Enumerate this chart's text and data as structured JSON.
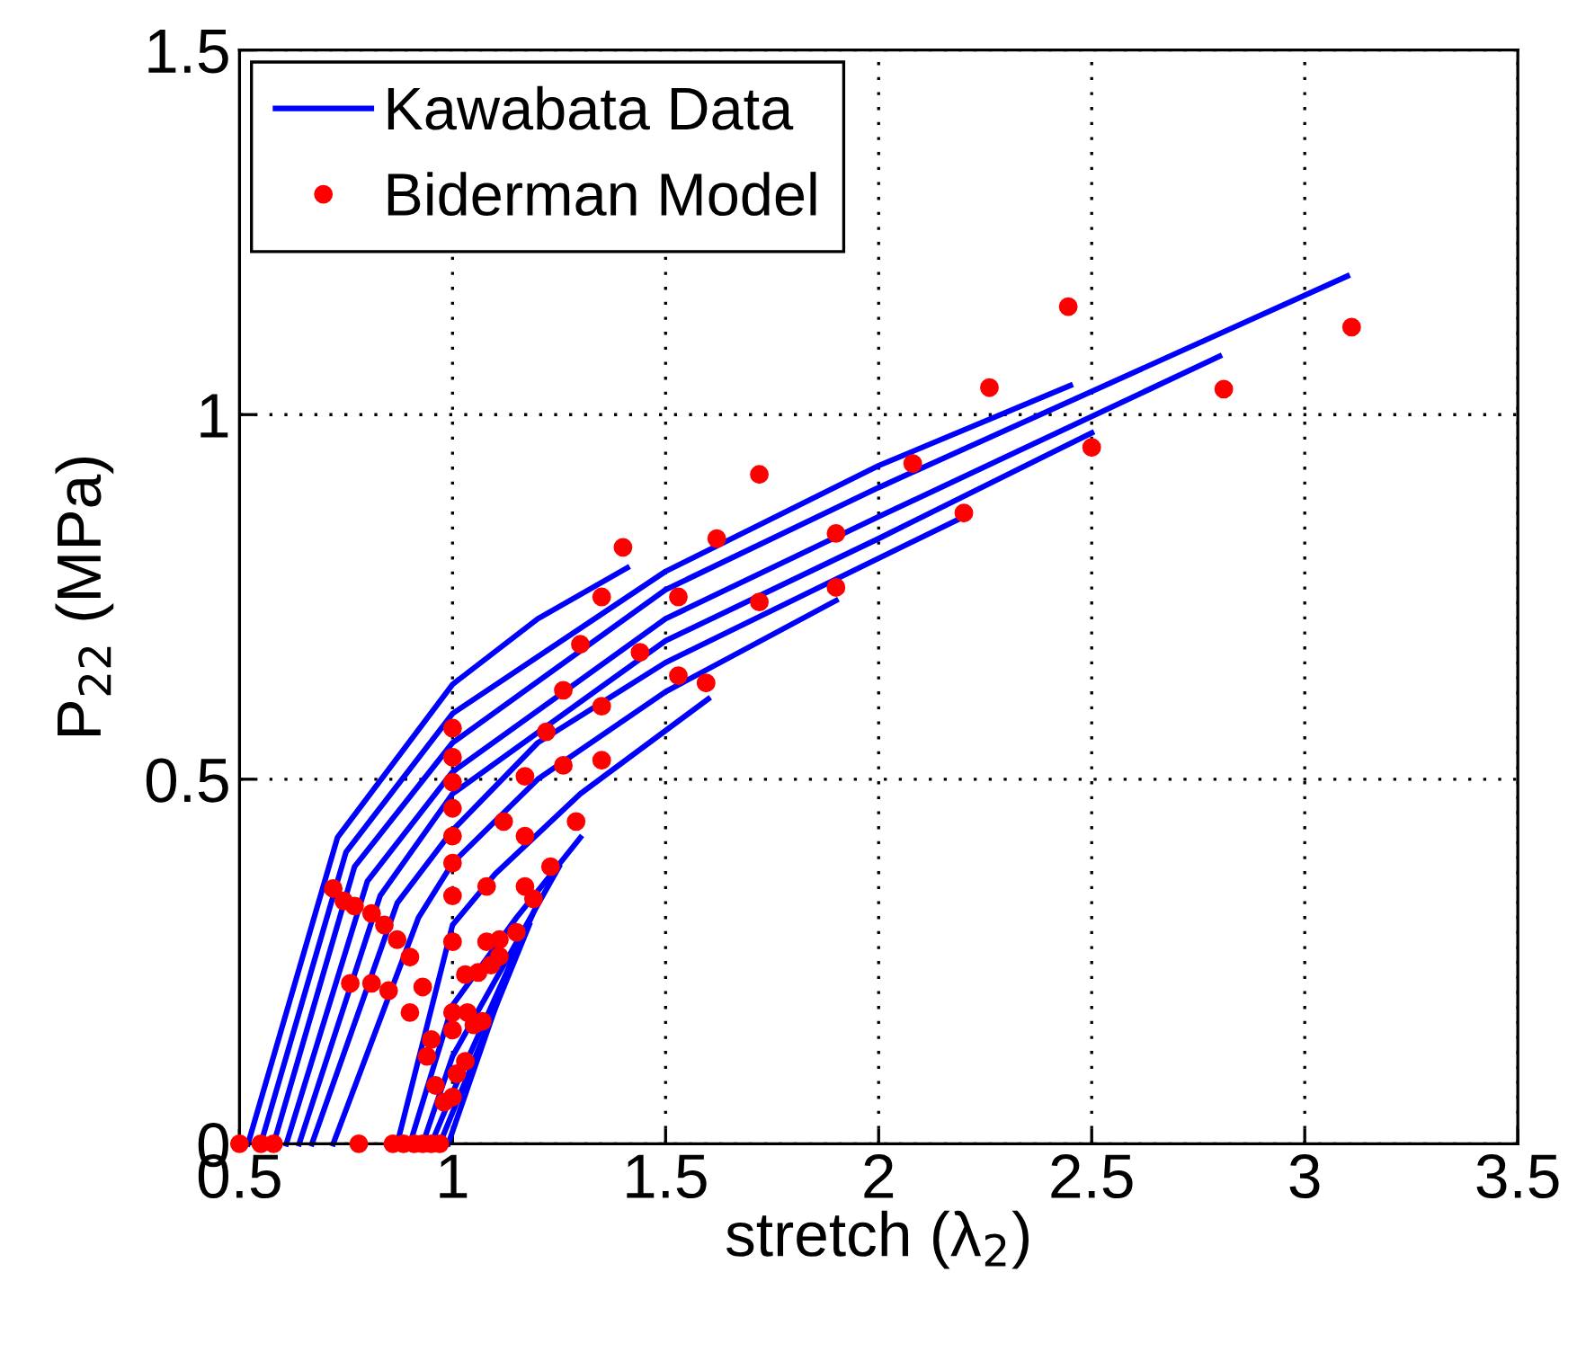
{
  "chart_data": {
    "type": "line",
    "xlabel": "stretch (λ$_{2}$)",
    "ylabel": "P$_{22}$ (MPa)",
    "xlim": [
      0.5,
      3.5
    ],
    "xticks": [
      0.5,
      1,
      1.5,
      2,
      2.5,
      3,
      3.5
    ],
    "ylim": [
      0,
      1.5
    ],
    "yticks": [
      0,
      0.5,
      1,
      1.5
    ],
    "grid": true,
    "legend": "top left",
    "series": [
      {
        "name": "Kawabata Data",
        "color": "#0000ff",
        "x": [
          0.52,
          0.73,
          1.0,
          1.2,
          1.41
        ],
        "values": [
          0,
          0.42,
          0.63,
          0.72,
          0.79
        ]
      },
      {
        "color": "#0000ff",
        "x": [
          0.55,
          0.75,
          1.0,
          1.5,
          2.0,
          2.45
        ],
        "values": [
          0,
          0.4,
          0.59,
          0.785,
          0.93,
          1.04
        ]
      },
      {
        "color": "#0000ff",
        "x": [
          0.58,
          0.77,
          1.0,
          1.5,
          2.0,
          3.1
        ],
        "values": [
          0,
          0.38,
          0.55,
          0.76,
          0.9,
          1.19
        ]
      },
      {
        "color": "#0000ff",
        "x": [
          0.61,
          0.8,
          1.0,
          1.5,
          2.0,
          2.8
        ],
        "values": [
          0,
          0.36,
          0.51,
          0.72,
          0.86,
          1.08
        ]
      },
      {
        "color": "#0000ff",
        "x": [
          0.64,
          0.83,
          1.0,
          1.5,
          2.0,
          2.5
        ],
        "values": [
          0,
          0.34,
          0.48,
          0.69,
          0.83,
          0.975
        ]
      },
      {
        "color": "#0000ff",
        "x": [
          0.67,
          0.87,
          1.0,
          1.2,
          1.5,
          2.2
        ],
        "values": [
          0,
          0.33,
          0.43,
          0.55,
          0.66,
          0.86
        ]
      },
      {
        "color": "#0000ff",
        "x": [
          0.72,
          0.92,
          1.0,
          1.2,
          1.5,
          1.9
        ],
        "values": [
          0,
          0.31,
          0.385,
          0.5,
          0.62,
          0.745
        ]
      },
      {
        "color": "#0000ff",
        "x": [
          0.87,
          1.0,
          1.1,
          1.3,
          1.6
        ],
        "values": [
          0,
          0.3,
          0.37,
          0.48,
          0.61
        ]
      },
      {
        "color": "#0000ff",
        "x": [
          0.9,
          1.0,
          1.15,
          1.3
        ],
        "values": [
          0,
          0.19,
          0.31,
          0.42
        ]
      },
      {
        "color": "#0000ff",
        "x": [
          0.93,
          1.0,
          1.25
        ],
        "values": [
          0,
          0.12,
          0.38
        ]
      },
      {
        "color": "#0000ff",
        "x": [
          0.95,
          1.0,
          1.2
        ],
        "values": [
          0,
          0.07,
          0.33
        ]
      },
      {
        "color": "#0000ff",
        "x": [
          0.97,
          1.18
        ],
        "values": [
          0,
          0.3
        ]
      },
      {
        "color": "#0000ff",
        "x": [
          0.99,
          1.15
        ],
        "values": [
          0,
          0.27
        ]
      },
      {
        "name": "Biderman Model",
        "type": "scatter",
        "marker": "circle",
        "color": "#ff0000",
        "x": [
          2.445,
          2.26,
          2.81,
          3.11,
          2.5,
          2.08,
          2.2,
          1.9,
          1.9,
          1.4,
          1.72,
          1.62,
          1.53,
          1.35,
          1.3,
          1.44,
          1.72,
          1.26,
          1.35,
          1.53,
          1.595,
          1.22,
          1.17,
          1.26,
          1.35,
          1.12,
          1.29,
          1.0,
          1.0,
          1.0,
          1.0,
          1.0,
          1.0,
          1.0,
          1.0,
          1.0,
          0.72,
          0.745,
          0.77,
          0.81,
          0.84,
          0.87,
          0.9,
          0.76,
          0.81,
          0.85,
          0.93,
          0.9,
          1.17,
          1.08,
          1.17,
          1.23,
          1.19,
          1.11,
          1.15,
          1.08,
          1.03,
          1.06,
          1.09,
          1.11,
          0.95,
          0.94,
          1.0,
          1.035,
          1.05,
          1.07,
          0.96,
          0.98,
          1.0,
          1.01,
          1.03,
          0.5,
          0.55,
          0.58,
          0.78,
          0.86,
          0.885,
          0.91,
          0.93,
          0.95,
          0.97
        ],
        "values": [
          1.148,
          1.037,
          1.035,
          1.12,
          0.955,
          0.933,
          0.865,
          0.837,
          0.763,
          0.818,
          0.918,
          0.83,
          0.75,
          0.75,
          0.685,
          0.674,
          0.743,
          0.622,
          0.6,
          0.642,
          0.632,
          0.565,
          0.504,
          0.519,
          0.526,
          0.442,
          0.442,
          0.57,
          0.53,
          0.496,
          0.46,
          0.422,
          0.385,
          0.34,
          0.277,
          0.18,
          0.35,
          0.333,
          0.326,
          0.316,
          0.3,
          0.28,
          0.256,
          0.22,
          0.22,
          0.21,
          0.215,
          0.18,
          0.422,
          0.353,
          0.353,
          0.38,
          0.336,
          0.28,
          0.29,
          0.277,
          0.232,
          0.235,
          0.245,
          0.257,
          0.143,
          0.12,
          0.156,
          0.18,
          0.163,
          0.168,
          0.08,
          0.057,
          0.064,
          0.096,
          0.113,
          0,
          0,
          0,
          0,
          0,
          0,
          0,
          0,
          0,
          0
        ]
      }
    ]
  }
}
